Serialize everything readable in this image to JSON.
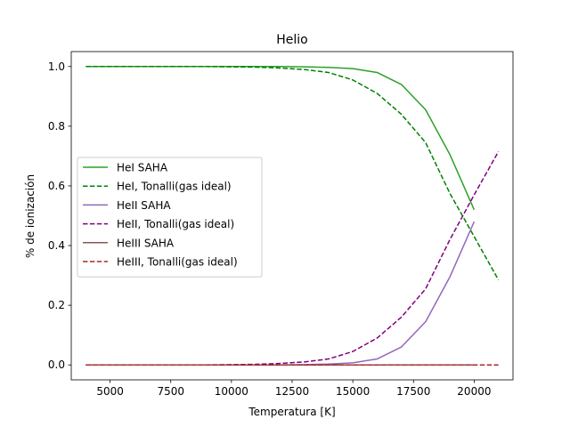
{
  "chart_data": {
    "type": "line",
    "title": "Helio",
    "xlabel": "Temperatura [K]",
    "ylabel": "% de ionización",
    "xlim": [
      3400,
      21600
    ],
    "ylim": [
      -0.05,
      1.05
    ],
    "xticks": [
      5000,
      7500,
      10000,
      12500,
      15000,
      17500,
      20000
    ],
    "yticks": [
      0.0,
      0.2,
      0.4,
      0.6,
      0.8,
      1.0
    ],
    "xtick_labels": [
      "5000",
      "7500",
      "10000",
      "12500",
      "15000",
      "17500",
      "20000"
    ],
    "ytick_labels": [
      "0.0",
      "0.2",
      "0.4",
      "0.6",
      "0.8",
      "1.0"
    ],
    "grid": false,
    "legend_position": "center-left",
    "series": [
      {
        "name": "HeI SAHA",
        "color": "#2ca02c",
        "dash": "solid",
        "x": [
          4000,
          5000,
          6000,
          7000,
          8000,
          9000,
          10000,
          11000,
          12000,
          13000,
          14000,
          15000,
          16000,
          17000,
          18000,
          19000,
          20000
        ],
        "y": [
          1.0,
          1.0,
          1.0,
          1.0,
          1.0,
          1.0,
          1.0,
          1.0,
          1.0,
          0.999,
          0.997,
          0.993,
          0.98,
          0.94,
          0.855,
          0.705,
          0.52
        ]
      },
      {
        "name": "HeI, Tonalli(gas ideal)",
        "color": "#008000",
        "dash": "dashed",
        "x": [
          4000,
          5000,
          6000,
          7000,
          8000,
          9000,
          10000,
          11000,
          12000,
          13000,
          14000,
          15000,
          16000,
          17000,
          18000,
          19000,
          20000,
          21000
        ],
        "y": [
          1.0,
          1.0,
          1.0,
          1.0,
          1.0,
          1.0,
          0.999,
          0.998,
          0.995,
          0.99,
          0.98,
          0.955,
          0.91,
          0.84,
          0.745,
          0.575,
          0.43,
          0.285
        ]
      },
      {
        "name": "HeII SAHA",
        "color": "#9467bd",
        "dash": "solid",
        "x": [
          4000,
          5000,
          6000,
          7000,
          8000,
          9000,
          10000,
          11000,
          12000,
          13000,
          14000,
          15000,
          16000,
          17000,
          18000,
          19000,
          20000
        ],
        "y": [
          0.0,
          0.0,
          0.0,
          0.0,
          0.0,
          0.0,
          0.0,
          0.0,
          0.0,
          0.001,
          0.003,
          0.007,
          0.02,
          0.06,
          0.145,
          0.295,
          0.48
        ]
      },
      {
        "name": "HeII, Tonalli(gas ideal)",
        "color": "#800080",
        "dash": "dashed",
        "x": [
          4000,
          5000,
          6000,
          7000,
          8000,
          9000,
          10000,
          11000,
          12000,
          13000,
          14000,
          15000,
          16000,
          17000,
          18000,
          19000,
          20000,
          21000
        ],
        "y": [
          0.0,
          0.0,
          0.0,
          0.0,
          0.0,
          0.0,
          0.001,
          0.002,
          0.005,
          0.01,
          0.02,
          0.045,
          0.09,
          0.16,
          0.255,
          0.42,
          0.57,
          0.715
        ]
      },
      {
        "name": "HeIII SAHA",
        "color": "#8c564b",
        "dash": "solid",
        "x": [
          4000,
          5000,
          6000,
          7000,
          8000,
          9000,
          10000,
          11000,
          12000,
          13000,
          14000,
          15000,
          16000,
          17000,
          18000,
          19000,
          20000
        ],
        "y": [
          0,
          0,
          0,
          0,
          0,
          0,
          0,
          0,
          0,
          0,
          0,
          0,
          0,
          0,
          0,
          0,
          0
        ]
      },
      {
        "name": "HeIII, Tonalli(gas ideal)",
        "color": "#a52a2a",
        "dash": "dashed",
        "x": [
          4000,
          5000,
          6000,
          7000,
          8000,
          9000,
          10000,
          11000,
          12000,
          13000,
          14000,
          15000,
          16000,
          17000,
          18000,
          19000,
          20000,
          21000
        ],
        "y": [
          0,
          0,
          0,
          0,
          0,
          0,
          0,
          0,
          0,
          0,
          0,
          0,
          0,
          0,
          0,
          0,
          0,
          0
        ]
      }
    ]
  }
}
